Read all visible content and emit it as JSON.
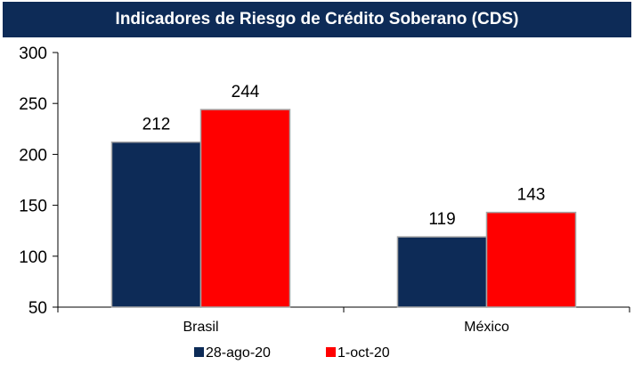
{
  "chart_data": {
    "type": "bar",
    "title": "Indicadores de Riesgo de Crédito Soberano (CDS)",
    "categories": [
      "Brasil",
      "México"
    ],
    "series": [
      {
        "name": "28-ago-20",
        "values": [
          212,
          119
        ],
        "color": "#0d2b57"
      },
      {
        "name": "1-oct-20",
        "values": [
          244,
          143
        ],
        "color": "#ff0000"
      }
    ],
    "ylim": [
      50,
      300
    ],
    "yticks": [
      50,
      100,
      150,
      200,
      250,
      300
    ],
    "xlabel": "",
    "ylabel": "",
    "grid": false,
    "legend_position": "bottom"
  }
}
